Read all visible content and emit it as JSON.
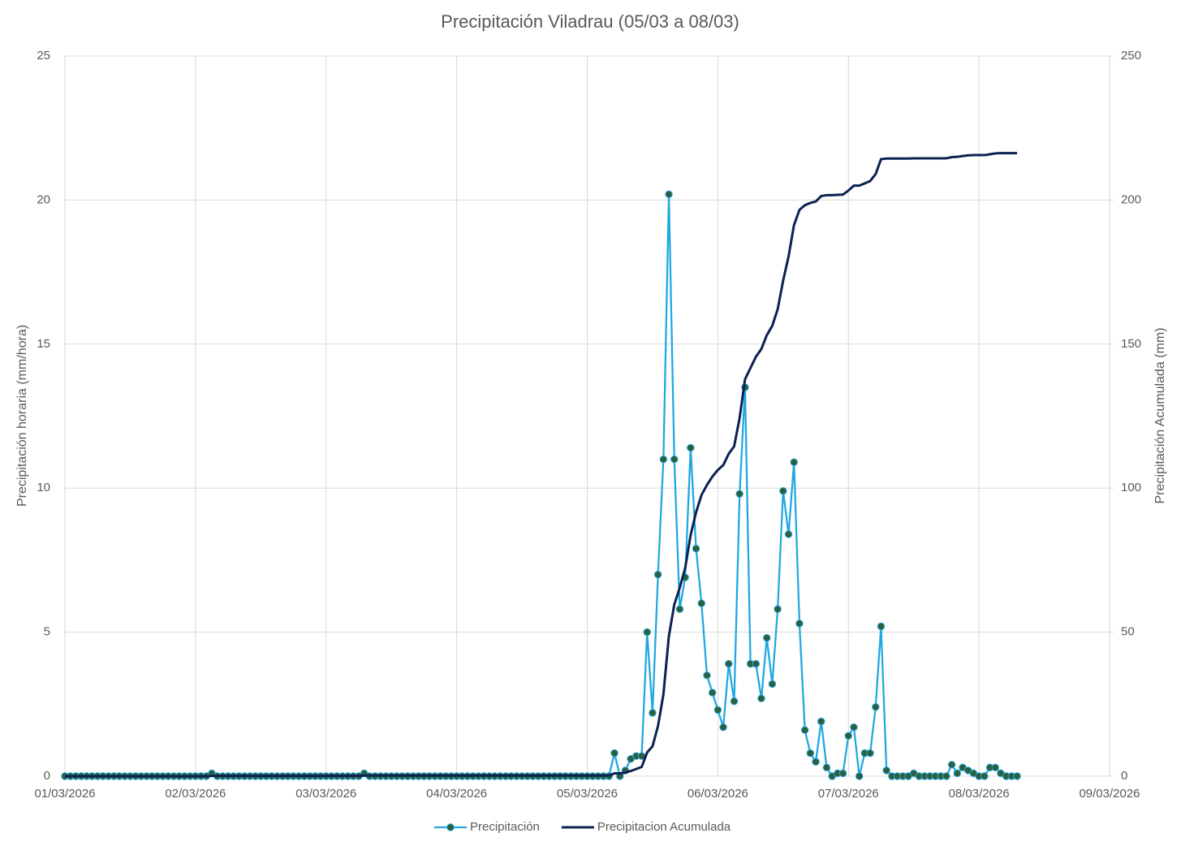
{
  "chart_data": {
    "type": "line",
    "title": "Precipitación Viladrau (05/03 a 08/03)",
    "y_label": "Precipitación horaria (mm/hora)",
    "y2_label": "Precipitación Acumulada (mm)",
    "x": [
      0,
      1,
      2,
      3,
      4,
      5,
      6,
      7,
      8,
      9,
      10,
      11,
      12,
      13,
      14,
      15,
      16,
      17,
      18,
      19,
      20,
      21,
      22,
      23,
      24,
      25,
      26,
      27,
      28,
      29,
      30,
      31,
      32,
      33,
      34,
      35,
      36,
      37,
      38,
      39,
      40,
      41,
      42,
      43,
      44,
      45,
      46,
      47,
      48,
      49,
      50,
      51,
      52,
      53,
      54,
      55,
      56,
      57,
      58,
      59,
      60,
      61,
      62,
      63,
      64,
      65,
      66,
      67,
      68,
      69,
      70,
      71,
      72,
      73,
      74,
      75,
      76,
      77,
      78,
      79,
      80,
      81,
      82,
      83,
      84,
      85,
      86,
      87,
      88,
      89,
      90,
      91,
      92,
      93,
      94,
      95,
      96,
      97,
      98,
      99,
      100,
      101,
      102,
      103,
      104,
      105,
      106,
      107,
      108,
      109,
      110,
      111,
      112,
      113,
      114,
      115,
      116,
      117,
      118,
      119,
      120,
      121,
      122,
      123,
      124,
      125,
      126,
      127,
      128,
      129,
      130,
      131,
      132,
      133,
      134,
      135,
      136,
      137,
      138,
      139,
      140,
      141,
      142,
      143,
      144,
      145,
      146,
      147,
      148,
      149,
      150,
      151,
      152,
      153,
      154,
      155,
      156,
      157,
      158,
      159,
      160,
      161,
      162,
      163,
      164,
      165,
      166,
      167,
      168,
      169,
      170,
      171,
      172,
      173,
      174,
      175
    ],
    "series": [
      {
        "name": "Precipitación",
        "color": "#1ea7e1",
        "marker_color": "#2d5f3c",
        "markers": true,
        "values": [
          0,
          0,
          0,
          0,
          0,
          0,
          0,
          0,
          0,
          0,
          0,
          0,
          0,
          0,
          0,
          0,
          0,
          0,
          0,
          0,
          0,
          0,
          0,
          0,
          0,
          0,
          0,
          0.1,
          0,
          0,
          0,
          0,
          0,
          0,
          0,
          0,
          0,
          0,
          0,
          0,
          0,
          0,
          0,
          0,
          0,
          0,
          0,
          0,
          0,
          0,
          0,
          0,
          0,
          0,
          0,
          0.1,
          0,
          0,
          0,
          0,
          0,
          0,
          0,
          0,
          0,
          0,
          0,
          0,
          0,
          0,
          0,
          0,
          0,
          0,
          0,
          0,
          0,
          0,
          0,
          0,
          0,
          0,
          0,
          0,
          0,
          0,
          0,
          0,
          0,
          0,
          0,
          0,
          0,
          0,
          0,
          0,
          0,
          0,
          0,
          0,
          0,
          0.8,
          0,
          0.2,
          0.6,
          0.7,
          0.7,
          5,
          2.2,
          7,
          11,
          20.2,
          11,
          5.8,
          6.9,
          11.4,
          7.9,
          6,
          3.5,
          2.9,
          2.3,
          1.7,
          3.9,
          2.6,
          9.8,
          13.5,
          3.9,
          3.9,
          2.7,
          4.8,
          3.2,
          5.8,
          9.9,
          8.4,
          10.9,
          5.3,
          1.6,
          0.8,
          0.5,
          1.9,
          0.3,
          0,
          0.1,
          0.1,
          1.4,
          1.7,
          0,
          0.8,
          0.8,
          2.4,
          5.2,
          0.2,
          0,
          0,
          0,
          0,
          0.1,
          0,
          0,
          0,
          0,
          0,
          0,
          0.4,
          0.1,
          0.3,
          0.2,
          0.1,
          0,
          0,
          0.3,
          0.3,
          0.1,
          0,
          0,
          0
        ]
      },
      {
        "name": "Precipitacion Acumulada",
        "color": "#0c2152",
        "markers": false,
        "axis": "y2",
        "values": [
          0,
          0,
          0,
          0,
          0,
          0,
          0,
          0,
          0,
          0,
          0,
          0,
          0,
          0,
          0,
          0,
          0,
          0,
          0,
          0,
          0,
          0,
          0,
          0,
          0,
          0,
          0,
          0.1,
          0.1,
          0.1,
          0.1,
          0.1,
          0.1,
          0.1,
          0.1,
          0.1,
          0.1,
          0.1,
          0.1,
          0.1,
          0.1,
          0.1,
          0.1,
          0.1,
          0.1,
          0.1,
          0.1,
          0.1,
          0.1,
          0.1,
          0.1,
          0.1,
          0.1,
          0.1,
          0.1,
          0.2,
          0.2,
          0.2,
          0.2,
          0.2,
          0.2,
          0.2,
          0.2,
          0.2,
          0.2,
          0.2,
          0.2,
          0.2,
          0.2,
          0.2,
          0.2,
          0.2,
          0.2,
          0.2,
          0.2,
          0.2,
          0.2,
          0.2,
          0.2,
          0.2,
          0.2,
          0.2,
          0.2,
          0.2,
          0.2,
          0.2,
          0.2,
          0.2,
          0.2,
          0.2,
          0.2,
          0.2,
          0.2,
          0.2,
          0.2,
          0.2,
          0.2,
          0.2,
          0.2,
          0.2,
          0.2,
          1.0,
          1.0,
          1.2,
          1.8,
          2.5,
          3.2,
          8.2,
          10.4,
          17.4,
          28.4,
          48.6,
          59.6,
          65.4,
          72.3,
          83.7,
          91.6,
          97.6,
          101.1,
          104.0,
          106.3,
          108.0,
          111.9,
          114.5,
          124.3,
          137.8,
          141.7,
          145.6,
          148.3,
          153.1,
          156.3,
          162.1,
          172.0,
          180.4,
          191.3,
          196.6,
          198.2,
          199.0,
          199.5,
          201.4,
          201.7,
          201.7,
          201.8,
          201.9,
          203.3,
          205.0,
          205.0,
          205.8,
          206.6,
          209.0,
          214.2,
          214.4,
          214.4,
          214.4,
          214.4,
          214.4,
          214.5,
          214.5,
          214.5,
          214.5,
          214.5,
          214.5,
          214.5,
          214.9,
          215.0,
          215.3,
          215.5,
          215.6,
          215.6,
          215.6,
          215.9,
          216.2,
          216.3,
          216.3,
          216.3,
          216.3
        ]
      }
    ],
    "xlim": [
      0,
      192
    ],
    "xticks": [
      {
        "value": 0,
        "label": "01/03/2026"
      },
      {
        "value": 24,
        "label": "02/03/2026"
      },
      {
        "value": 48,
        "label": "03/03/2026"
      },
      {
        "value": 72,
        "label": "04/03/2026"
      },
      {
        "value": 96,
        "label": "05/03/2026"
      },
      {
        "value": 120,
        "label": "06/03/2026"
      },
      {
        "value": 144,
        "label": "07/03/2026"
      },
      {
        "value": 168,
        "label": "08/03/2026"
      },
      {
        "value": 192,
        "label": "09/03/2026"
      }
    ],
    "ylim": [
      0,
      25
    ],
    "yticks": [
      0,
      5,
      10,
      15,
      20,
      25
    ],
    "y2lim": [
      0,
      250
    ],
    "y2ticks": [
      0,
      50,
      100,
      150,
      200,
      250
    ],
    "grid": true,
    "legend": "bottom"
  }
}
